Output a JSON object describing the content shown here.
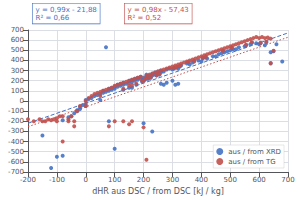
{
  "chart_data": {
    "type": "scatter",
    "xlabel": "dHR aus DSC / from DSC [kJ / kg]",
    "xlim": [
      -200,
      700
    ],
    "ylim": [
      -700,
      700
    ],
    "xticks": [
      -200,
      -100,
      0,
      100,
      200,
      300,
      400,
      500,
      600,
      700
    ],
    "yticks": [
      -700,
      -600,
      -500,
      -400,
      -300,
      -200,
      -100,
      0,
      100,
      200,
      300,
      400,
      500,
      600,
      700
    ],
    "grid": true,
    "legend": "lower right",
    "series": [
      {
        "name": "aus / from XRD",
        "type": "scatter",
        "color": "#4472C4",
        "x": [
          -150,
          -120,
          -100,
          -80,
          -80,
          -60,
          -50,
          -40,
          -30,
          -20,
          0,
          0,
          10,
          20,
          30,
          40,
          50,
          60,
          60,
          70,
          80,
          80,
          90,
          90,
          100,
          100,
          110,
          110,
          120,
          120,
          130,
          130,
          140,
          150,
          150,
          160,
          160,
          170,
          170,
          180,
          180,
          190,
          190,
          200,
          200,
          210,
          210,
          220,
          220,
          230,
          230,
          240,
          240,
          250,
          250,
          260,
          260,
          270,
          280,
          290,
          300,
          310,
          320,
          330,
          350,
          360,
          370,
          390,
          400,
          420,
          440,
          450,
          460,
          470,
          480,
          490,
          500,
          510,
          520,
          530,
          550,
          570,
          590,
          600,
          620,
          640,
          660,
          680,
          70,
          200,
          230,
          100,
          80,
          0,
          50,
          130,
          150,
          160,
          175,
          195,
          205,
          215,
          225,
          245,
          255,
          305,
          315,
          325,
          355,
          375,
          405,
          415,
          475,
          505,
          555,
          575,
          605,
          625,
          640,
          650,
          -10,
          -20,
          -30,
          260,
          270,
          280,
          300,
          310,
          320
        ],
        "values": [
          -340,
          -660,
          -550,
          -540,
          -190,
          -160,
          -150,
          -120,
          -100,
          -80,
          -30,
          10,
          20,
          30,
          50,
          60,
          70,
          80,
          100,
          90,
          100,
          120,
          110,
          130,
          120,
          140,
          140,
          160,
          150,
          170,
          160,
          180,
          170,
          180,
          200,
          190,
          210,
          200,
          220,
          210,
          230,
          220,
          240,
          210,
          230,
          240,
          260,
          230,
          250,
          250,
          270,
          260,
          280,
          270,
          290,
          280,
          300,
          290,
          310,
          320,
          310,
          330,
          320,
          350,
          370,
          360,
          380,
          400,
          390,
          420,
          440,
          440,
          460,
          470,
          480,
          490,
          500,
          510,
          510,
          530,
          540,
          560,
          570,
          560,
          550,
          480,
          560,
          390,
          530,
          -220,
          -300,
          -470,
          -200,
          -50,
          10,
          110,
          130,
          130,
          160,
          190,
          210,
          220,
          230,
          250,
          260,
          320,
          330,
          340,
          380,
          390,
          420,
          430,
          490,
          520,
          550,
          575,
          570,
          580,
          370,
          490,
          -40,
          -60,
          -90,
          170,
          160,
          180,
          200,
          160,
          170
        ]
      },
      {
        "name": "aus / from TG",
        "type": "scatter",
        "color": "#C0504D",
        "x": [
          -200,
          -180,
          -150,
          -130,
          -110,
          -100,
          -90,
          -80,
          -60,
          -50,
          -40,
          -30,
          -20,
          0,
          10,
          20,
          30,
          40,
          50,
          60,
          70,
          80,
          90,
          100,
          110,
          120,
          130,
          140,
          150,
          160,
          170,
          180,
          190,
          200,
          210,
          220,
          230,
          240,
          250,
          260,
          270,
          280,
          290,
          300,
          310,
          320,
          330,
          340,
          350,
          360,
          370,
          380,
          390,
          400,
          410,
          420,
          430,
          440,
          450,
          460,
          470,
          480,
          490,
          500,
          510,
          520,
          530,
          540,
          550,
          560,
          570,
          580,
          590,
          600,
          610,
          620,
          630,
          640,
          -160,
          -140,
          -120,
          -100,
          -80,
          -60,
          -40,
          100,
          130,
          150,
          160,
          200,
          210,
          80,
          0,
          50,
          130,
          150,
          160,
          175,
          195,
          205,
          215,
          225,
          245,
          255,
          305,
          315,
          325,
          355,
          375,
          405,
          415,
          475,
          505,
          555,
          575,
          605,
          625,
          640,
          650
        ],
        "values": [
          -180,
          -200,
          -200,
          -180,
          -180,
          -200,
          -150,
          -400,
          -200,
          -150,
          -200,
          -100,
          -50,
          0,
          30,
          50,
          70,
          80,
          90,
          100,
          110,
          120,
          130,
          150,
          160,
          170,
          180,
          190,
          200,
          210,
          220,
          230,
          240,
          200,
          250,
          260,
          270,
          280,
          290,
          300,
          310,
          320,
          330,
          340,
          350,
          360,
          370,
          380,
          390,
          400,
          410,
          420,
          430,
          440,
          450,
          460,
          470,
          480,
          490,
          500,
          510,
          520,
          530,
          540,
          550,
          560,
          570,
          580,
          590,
          600,
          610,
          620,
          630,
          620,
          630,
          620,
          625,
          615,
          -180,
          -200,
          -190,
          -170,
          -150,
          -180,
          -250,
          -200,
          -200,
          -230,
          -200,
          -260,
          -580,
          -250,
          -50,
          50,
          120,
          150,
          160,
          170,
          200,
          220,
          225,
          235,
          255,
          265,
          325,
          335,
          345,
          385,
          395,
          425,
          435,
          495,
          525,
          555,
          580,
          575,
          585,
          375,
          495
        ]
      },
      {
        "type": "line",
        "color": "#4472C4",
        "line_style": "dashed",
        "x": [
          -200,
          700
        ],
        "values": [
          -219.88,
          671.12
        ]
      },
      {
        "type": "line",
        "color": "#C0504D",
        "line_style": "dotted",
        "x": [
          -200,
          700
        ],
        "values": [
          -253.43,
          628.57
        ]
      }
    ],
    "annotations": [
      {
        "text": "y = 0,99x - 21,88\nR² = 0,66",
        "color": "#4472C4"
      },
      {
        "text": "y = 0,98x - 57,43\nR² = 0,52",
        "color": "#C0504D"
      }
    ]
  }
}
